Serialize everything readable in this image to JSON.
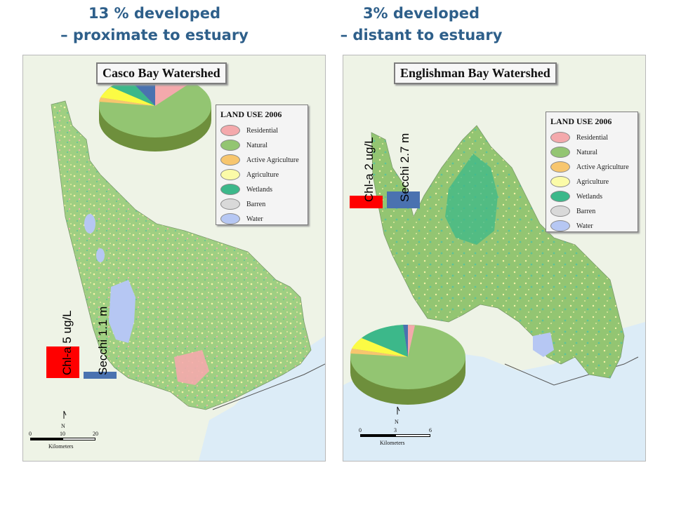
{
  "headings": {
    "left_line1": "13 % developed",
    "left_line2": "– proximate to estuary",
    "right_line1": "3% developed",
    "right_line2": "– distant to estuary"
  },
  "panels": [
    {
      "title": "Casco Bay Watershed",
      "chl": "Chl-a 5 ug/L",
      "secchi": "Secchi 1.1 m",
      "scale_ticks": [
        "0",
        "10",
        "20"
      ],
      "scale_unit": "Kilometers",
      "north": "N"
    },
    {
      "title": "Englishman Bay Watershed",
      "chl": "Chl-a 2 ug/L",
      "secchi": "Secchi 2.7 m",
      "scale_ticks": [
        "0",
        "3",
        "6"
      ],
      "scale_unit": "Kilometers",
      "north": "N"
    }
  ],
  "legend": {
    "title": "LAND USE 2006",
    "items": [
      {
        "label": "Residential",
        "color": "#f4a9ac"
      },
      {
        "label": "Natural",
        "color": "#93c572"
      },
      {
        "label": "Active Agriculture",
        "color": "#f7c66e"
      },
      {
        "label": "Agriculture",
        "color": "#fbfba8"
      },
      {
        "label": "Wetlands",
        "color": "#3cb88a"
      },
      {
        "label": "Barren",
        "color": "#d9d9d9"
      },
      {
        "label": "Water",
        "color": "#b6c7f3"
      }
    ]
  },
  "colors": {
    "heading": "#2e5f8a",
    "chl_bar": "#ff0000",
    "secchi_bar": "#4a72b0",
    "ocean": "#dcecf7",
    "land_bg": "#eef3e6"
  }
}
